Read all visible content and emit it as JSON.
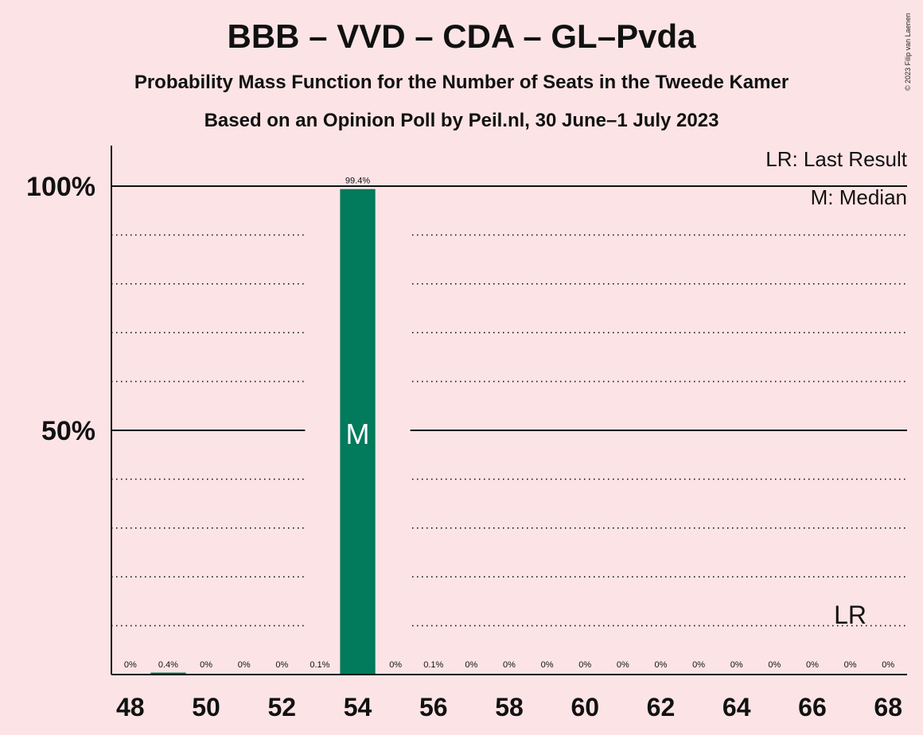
{
  "header": {
    "title": "BBB – VVD – CDA – GL–Pvda",
    "subtitle": "Probability Mass Function for the Number of Seats in the Tweede Kamer",
    "subtitle2": "Based on an Opinion Poll by Peil.nl, 30 June–1 July 2023"
  },
  "copyright": "© 2023 Filip van Laenen",
  "colors": {
    "background": "#fce4e6",
    "bar": "#027a5c",
    "text": "#111111"
  },
  "chart_data": {
    "type": "bar",
    "x": [
      48,
      49,
      50,
      51,
      52,
      53,
      54,
      55,
      56,
      57,
      58,
      59,
      60,
      61,
      62,
      63,
      64,
      65,
      66,
      67,
      68
    ],
    "values": [
      0,
      0.4,
      0,
      0,
      0,
      0.1,
      99.4,
      0,
      0.1,
      0,
      0,
      0,
      0,
      0,
      0,
      0,
      0,
      0,
      0,
      0,
      0
    ],
    "value_labels": [
      "0%",
      "0.4%",
      "0%",
      "0%",
      "0%",
      "0.1%",
      "99.4%",
      "0%",
      "0.1%",
      "0%",
      "0%",
      "0%",
      "0%",
      "0%",
      "0%",
      "0%",
      "0%",
      "0%",
      "0%",
      "0%",
      "0%"
    ],
    "x_tick_labels": [
      "48",
      "50",
      "52",
      "54",
      "56",
      "58",
      "60",
      "62",
      "64",
      "66",
      "68"
    ],
    "x_ticks": [
      48,
      50,
      52,
      54,
      56,
      58,
      60,
      62,
      64,
      66,
      68
    ],
    "y_tick_labels": [
      "100%",
      "50%"
    ],
    "y_ticks": [
      100,
      50
    ],
    "ylim": [
      0,
      108
    ],
    "grid": "dotted every 10%",
    "median_seat": 54,
    "median_label": "M",
    "last_result_seat": 67,
    "last_result_label": "LR",
    "legend": {
      "lr": "LR: Last Result",
      "m": "M: Median",
      "placement": "top-right"
    }
  }
}
